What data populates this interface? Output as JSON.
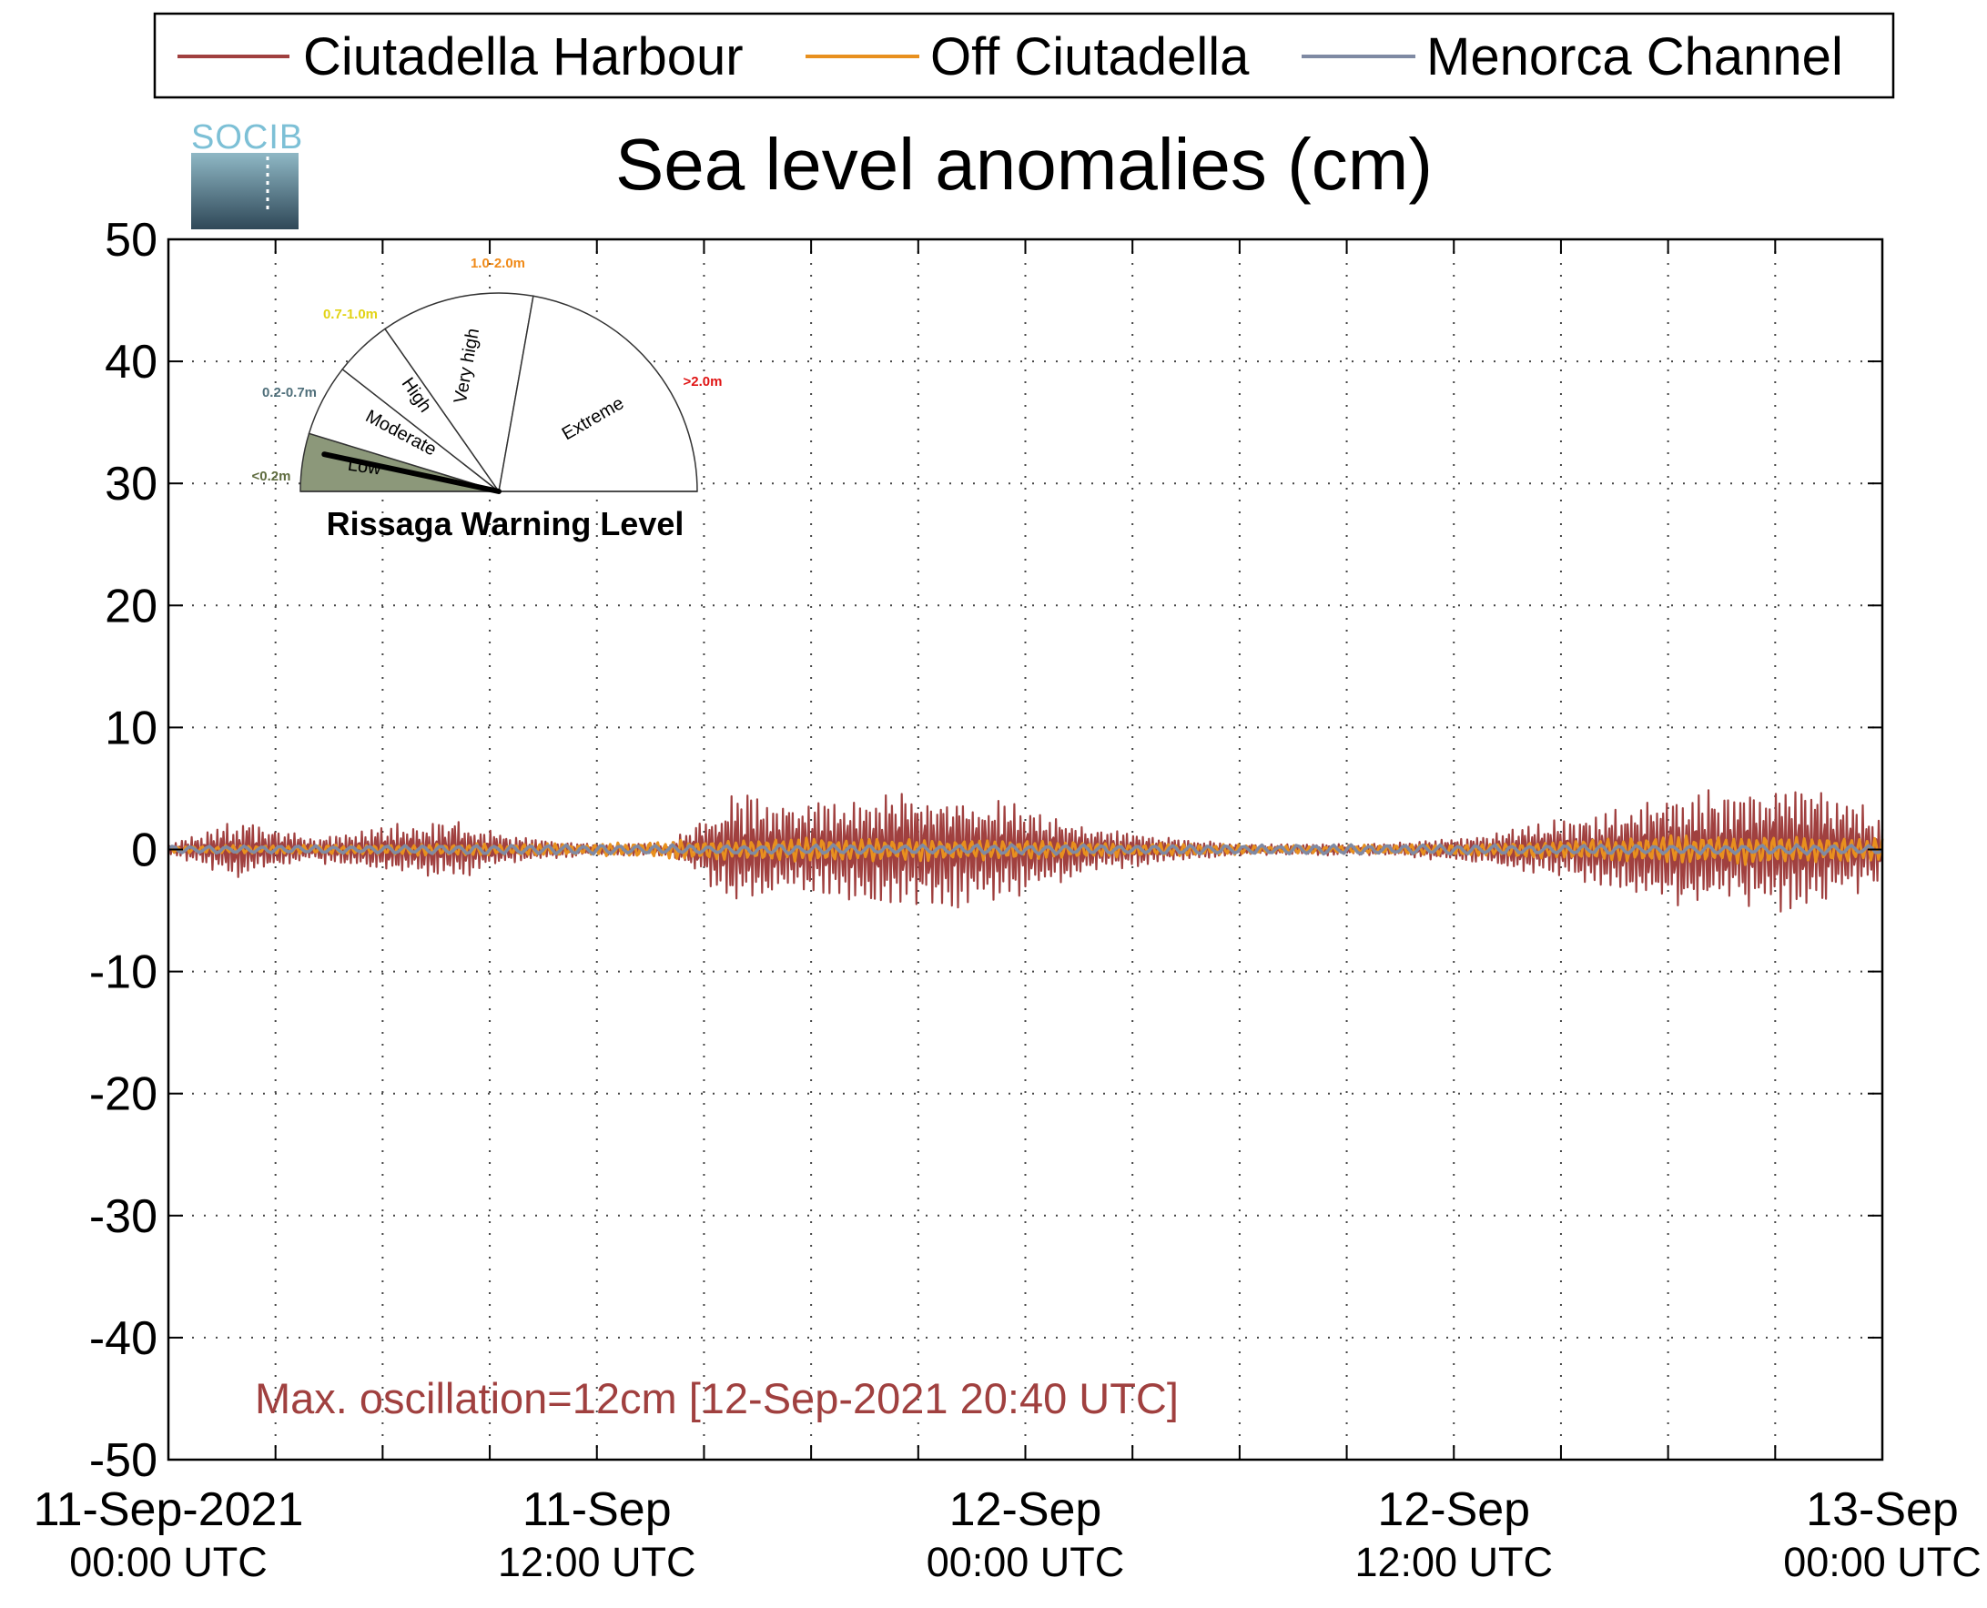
{
  "chart_data": {
    "type": "line",
    "title": "Sea level anomalies (cm)",
    "ylim": [
      -50,
      50
    ],
    "yticks": [
      "50",
      "40",
      "30",
      "20",
      "10",
      "0",
      "-10",
      "-20",
      "-30",
      "-40",
      "-50"
    ],
    "xlim": [
      "2021-09-11 00:00",
      "2021-09-13 00:00"
    ],
    "xticks": [
      {
        "main": "11-Sep-2021",
        "sub": "00:00 UTC"
      },
      {
        "main": "11-Sep",
        "sub": "12:00 UTC"
      },
      {
        "main": "12-Sep",
        "sub": "00:00 UTC"
      },
      {
        "main": "12-Sep",
        "sub": "12:00 UTC"
      },
      {
        "main": "13-Sep",
        "sub": "00:00 UTC"
      }
    ],
    "grid": true,
    "legend_position": "top",
    "series": [
      {
        "name": "Ciutadella Harbour",
        "color": "#a0403f",
        "envelope_hours": [
          0,
          2,
          4,
          6,
          8,
          10,
          12,
          14,
          16,
          18,
          20,
          22,
          24,
          26,
          28,
          30,
          32,
          34,
          36,
          38,
          40,
          42,
          44,
          46,
          48
        ],
        "envelope_amplitude_cm": [
          0.5,
          2.5,
          1,
          2,
          2.5,
          1,
          0.5,
          0.5,
          5,
          4,
          5,
          5,
          4,
          2,
          1,
          0.5,
          0.5,
          0.5,
          1,
          2,
          3,
          5,
          5,
          5.5,
          3
        ],
        "peak_cm": 6.5
      },
      {
        "name": "Off Ciutadella",
        "color": "#e8901e",
        "envelope_hours": [
          0,
          8,
          12,
          16,
          20,
          24,
          32,
          36,
          40,
          44,
          48
        ],
        "envelope_amplitude_cm": [
          0.3,
          0.5,
          0.5,
          1,
          1,
          0.8,
          0.3,
          0.5,
          1,
          1.3,
          1
        ],
        "peak_cm": 1.5
      },
      {
        "name": "Menorca Channel",
        "color": "#7f8aa3",
        "envelope_hours": [
          0,
          12,
          24,
          36,
          48
        ],
        "envelope_amplitude_cm": [
          0.3,
          0.4,
          0.4,
          0.4,
          0.4
        ],
        "peak_cm": 0.5
      }
    ],
    "annotation": "Max. oscillation=12cm [12-Sep-2021 20:40 UTC]",
    "annotation_color": "#a0403f"
  },
  "gauge": {
    "title": "Rissaga Warning Level",
    "sectors": [
      {
        "label": "Low",
        "range": "<0.2m",
        "range_color": "#5e6b3e",
        "fill": "#8c987a"
      },
      {
        "label": "Moderate",
        "range": "0.2-0.7m",
        "range_color": "#4f6f7a",
        "fill": "#ffffff"
      },
      {
        "label": "High",
        "range": "0.7-1.0m",
        "range_color": "#e2d315",
        "fill": "#ffffff"
      },
      {
        "label": "Very high",
        "range": "1.0-2.0m",
        "range_color": "#f08a18",
        "fill": "#ffffff"
      },
      {
        "label": "Extreme",
        "range": ">2.0m",
        "range_color": "#e01414",
        "fill": "#ffffff"
      }
    ],
    "active_level": "Low"
  },
  "logo": {
    "text": "SOCIB"
  }
}
